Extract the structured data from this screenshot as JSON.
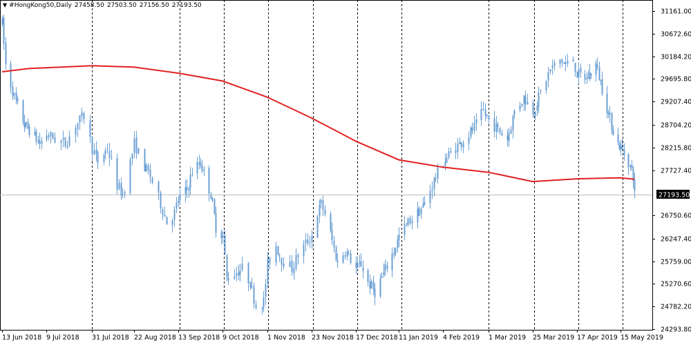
{
  "header": {
    "symbol_timeframe": "#HongKong50,Daily",
    "open": "27458.50",
    "high": "27503.50",
    "low": "27156.50",
    "close": "27193.50",
    "menu_icon": "triangle-down-icon"
  },
  "colors": {
    "candle": "#6a9fd4",
    "ma_line": "#e02020",
    "grid": "#000000",
    "price_line": "#bdbdbd",
    "price_label_bg": "#000000",
    "price_label_text": "#ffffff"
  },
  "chart_data": {
    "type": "candlestick",
    "instrument": "#HongKong50",
    "timeframe": "Daily",
    "current_price": "27193.50",
    "ylim": [
      24293.98,
      31161.0
    ],
    "grid": "vertical dashed separators",
    "y_ticks": [
      "31161.00",
      "30672.60",
      "30184.20",
      "29695.80",
      "29207.40",
      "28704.20",
      "28215.80",
      "27727.40",
      "27193.50",
      "26750.60",
      "26247.40",
      "25759.00",
      "25270.60",
      "24782.20",
      "24293.80"
    ],
    "x_ticks": [
      "13 Jun 2018",
      "9 Jul 2018",
      "31 Jul 2018",
      "22 Aug 2018",
      "13 Sep 2018",
      "9 Oct 2018",
      "1 Nov 2018",
      "23 Nov 2018",
      "17 Dec 2018",
      "11 Jan 2019",
      "4 Feb 2019",
      "1 Mar 2019",
      "25 Mar 2019",
      "17 Apr 2019",
      "15 May 2019"
    ],
    "separator_after": [
      "9 Jul 2018",
      "22 Aug 2018",
      "13 Sep 2018",
      "9 Oct 2018",
      "1 Nov 2018",
      "23 Nov 2018",
      "17 Dec 2018",
      "4 Feb 2019",
      "1 Mar 2019",
      "25 Mar 2019",
      "17 Apr 2019"
    ],
    "close_path": [
      [
        "13 Jun 2018",
        30900
      ],
      [
        "15 Jun 2018",
        30000
      ],
      [
        "20 Jun 2018",
        29300
      ],
      [
        "26 Jun 2018",
        28700
      ],
      [
        "29 Jun 2018",
        28600
      ],
      [
        "5 Jul 2018",
        28300
      ],
      [
        "9 Jul 2018",
        28500
      ],
      [
        "13 Jul 2018",
        28400
      ],
      [
        "18 Jul 2018",
        28300
      ],
      [
        "23 Jul 2018",
        28700
      ],
      [
        "27 Jul 2018",
        28900
      ],
      [
        "31 Jul 2018",
        28200
      ],
      [
        "3 Aug 2018",
        27900
      ],
      [
        "8 Aug 2018",
        28200
      ],
      [
        "13 Aug 2018",
        27400
      ],
      [
        "16 Aug 2018",
        27200
      ],
      [
        "20 Aug 2018",
        27900
      ],
      [
        "22 Aug 2018",
        28300
      ],
      [
        "27 Aug 2018",
        27800
      ],
      [
        "30 Aug 2018",
        27600
      ],
      [
        "4 Sep 2018",
        27000
      ],
      [
        "7 Sep 2018",
        26600
      ],
      [
        "11 Sep 2018",
        26800
      ],
      [
        "13 Sep 2018",
        27100
      ],
      [
        "18 Sep 2018",
        27300
      ],
      [
        "21 Sep 2018",
        27700
      ],
      [
        "26 Sep 2018",
        27900
      ],
      [
        "2 Oct 2018",
        27200
      ],
      [
        "5 Oct 2018",
        26500
      ],
      [
        "9 Oct 2018",
        26300
      ],
      [
        "11 Oct 2018",
        25400
      ],
      [
        "15 Oct 2018",
        25500
      ],
      [
        "19 Oct 2018",
        25600
      ],
      [
        "23 Oct 2018",
        25300
      ],
      [
        "26 Oct 2018",
        24800
      ],
      [
        "30 Oct 2018",
        24900
      ],
      [
        "1 Nov 2018",
        25700
      ],
      [
        "5 Nov 2018",
        26100
      ],
      [
        "8 Nov 2018",
        25800
      ],
      [
        "13 Nov 2018",
        25600
      ],
      [
        "16 Nov 2018",
        25900
      ],
      [
        "21 Nov 2018",
        26200
      ],
      [
        "23 Nov 2018",
        26300
      ],
      [
        "26 Nov 2018",
        26800
      ],
      [
        "28 Nov 2018",
        27000
      ],
      [
        "30 Nov 2018",
        26800
      ],
      [
        "4 Dec 2018",
        26200
      ],
      [
        "7 Dec 2018",
        25700
      ],
      [
        "11 Dec 2018",
        26000
      ],
      [
        "14 Dec 2018",
        25800
      ],
      [
        "17 Dec 2018",
        25600
      ],
      [
        "20 Dec 2018",
        25700
      ],
      [
        "24 Dec 2018",
        25300
      ],
      [
        "28 Dec 2018",
        25100
      ],
      [
        "2 Jan 2019",
        25500
      ],
      [
        "7 Jan 2019",
        25900
      ],
      [
        "11 Jan 2019",
        26300
      ],
      [
        "16 Jan 2019",
        26600
      ],
      [
        "21 Jan 2019",
        26800
      ],
      [
        "25 Jan 2019",
        27000
      ],
      [
        "30 Jan 2019",
        27500
      ],
      [
        "4 Feb 2019",
        27900
      ],
      [
        "8 Feb 2019",
        28100
      ],
      [
        "13 Feb 2019",
        28300
      ],
      [
        "18 Feb 2019",
        28500
      ],
      [
        "22 Feb 2019",
        28700
      ],
      [
        "26 Feb 2019",
        29000
      ],
      [
        "1 Mar 2019",
        28800
      ],
      [
        "6 Mar 2019",
        28600
      ],
      [
        "11 Mar 2019",
        28400
      ],
      [
        "15 Mar 2019",
        29000
      ],
      [
        "20 Mar 2019",
        29300
      ],
      [
        "25 Mar 2019",
        29000
      ],
      [
        "29 Mar 2019",
        29400
      ],
      [
        "3 Apr 2019",
        29900
      ],
      [
        "8 Apr 2019",
        30100
      ],
      [
        "11 Apr 2019",
        30000
      ],
      [
        "15 Apr 2019",
        30100
      ],
      [
        "17 Apr 2019",
        29800
      ],
      [
        "23 Apr 2019",
        29700
      ],
      [
        "29 Apr 2019",
        30000
      ],
      [
        "3 May 2019",
        29500
      ],
      [
        "8 May 2019",
        28800
      ],
      [
        "13 May 2019",
        28300
      ],
      [
        "15 May 2019",
        28200
      ],
      [
        "20 May 2019",
        27900
      ],
      [
        "23 May 2019",
        27600
      ],
      [
        "24 May 2019",
        27193.5
      ]
    ],
    "series": [
      {
        "type": "line",
        "points": [
          [
            "13 Jun 2018",
            29850
          ],
          [
            "29 Jun 2018",
            29920
          ],
          [
            "31 Jul 2018",
            29980
          ],
          [
            "22 Aug 2018",
            29950
          ],
          [
            "13 Sep 2018",
            29820
          ],
          [
            "9 Oct 2018",
            29650
          ],
          [
            "1 Nov 2018",
            29300
          ],
          [
            "23 Nov 2018",
            28850
          ],
          [
            "17 Dec 2018",
            28350
          ],
          [
            "11 Jan 2019",
            27950
          ],
          [
            "4 Feb 2019",
            27790
          ],
          [
            "1 Mar 2019",
            27680
          ],
          [
            "25 Mar 2019",
            27480
          ],
          [
            "17 Apr 2019",
            27540
          ],
          [
            "15 May 2019",
            27560
          ],
          [
            "24 May 2019",
            27530
          ]
        ]
      }
    ]
  }
}
